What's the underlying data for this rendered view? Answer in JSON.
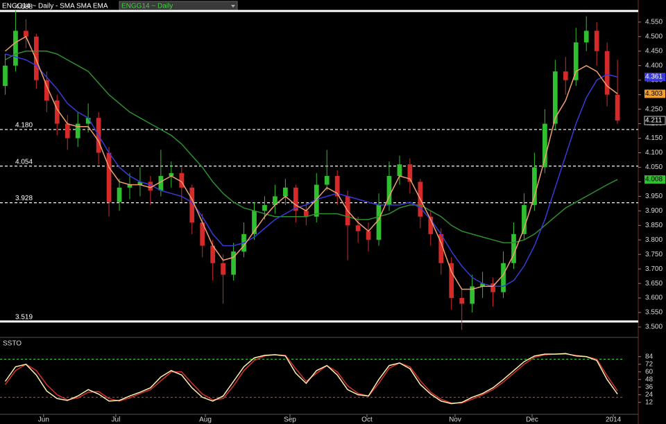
{
  "chart_data": {
    "type": "candlestick",
    "title": "ENGG14 ~ Daily - SMA SMA EMA",
    "symbol_selector": "ENGG14 ~ Daily",
    "xlim": [
      -0.5,
      61
    ],
    "xticks": [
      {
        "value": 3.7,
        "label": "Jun"
      },
      {
        "value": 10.66,
        "label": "Jul"
      },
      {
        "value": 19.29,
        "label": "Aug"
      },
      {
        "value": 27.44,
        "label": "Sep"
      },
      {
        "value": 34.86,
        "label": "Oct"
      },
      {
        "value": 43.35,
        "label": "Nov"
      },
      {
        "value": 50.77,
        "label": "Dec"
      },
      {
        "value": 58.6,
        "label": "2014"
      }
    ],
    "ylim": [
      3.469,
      4.626
    ],
    "yticks": [
      {
        "value": 3.5,
        "label": "3.500"
      },
      {
        "value": 3.55,
        "label": "3.550"
      },
      {
        "value": 3.6,
        "label": "3.600"
      },
      {
        "value": 3.65,
        "label": "3.650"
      },
      {
        "value": 3.7,
        "label": "3.700"
      },
      {
        "value": 3.75,
        "label": "3.750"
      },
      {
        "value": 3.8,
        "label": "3.800"
      },
      {
        "value": 3.85,
        "label": "3.850"
      },
      {
        "value": 3.9,
        "label": "3.900"
      },
      {
        "value": 3.95,
        "label": "3.950"
      },
      {
        "value": 4.0,
        "label": "4.000"
      },
      {
        "value": 4.05,
        "label": "4.050"
      },
      {
        "value": 4.1,
        "label": "4.100"
      },
      {
        "value": 4.15,
        "label": "4.150"
      },
      {
        "value": 4.2,
        "label": "4.200"
      },
      {
        "value": 4.25,
        "label": "4.250"
      },
      {
        "value": 4.3,
        "label": "4.300"
      },
      {
        "value": 4.35,
        "label": "4.350"
      },
      {
        "value": 4.4,
        "label": "4.400"
      },
      {
        "value": 4.45,
        "label": "4.450"
      },
      {
        "value": 4.5,
        "label": "4.500"
      },
      {
        "value": 4.55,
        "label": "4.550"
      }
    ],
    "up_color": "#2fbf2f",
    "down_color": "#d42a2a",
    "candles": [
      [
        4.33,
        4.44,
        4.3,
        4.4
      ],
      [
        4.4,
        4.59,
        4.38,
        4.52
      ],
      [
        4.52,
        4.56,
        4.46,
        4.5
      ],
      [
        4.5,
        4.51,
        4.32,
        4.35
      ],
      [
        4.35,
        4.38,
        4.24,
        4.28
      ],
      [
        4.28,
        4.3,
        4.16,
        4.2
      ],
      [
        4.2,
        4.23,
        4.11,
        4.15
      ],
      [
        4.15,
        4.24,
        4.12,
        4.2
      ],
      [
        4.2,
        4.27,
        4.17,
        4.22
      ],
      [
        4.22,
        4.24,
        4.06,
        4.1
      ],
      [
        4.1,
        4.12,
        3.88,
        3.93
      ],
      [
        3.93,
        4.01,
        3.9,
        3.98
      ],
      [
        3.98,
        4.03,
        3.94,
        3.99
      ],
      [
        3.99,
        4.05,
        3.95,
        4.0
      ],
      [
        4.0,
        4.02,
        3.92,
        3.97
      ],
      [
        3.97,
        4.11,
        3.95,
        4.02
      ],
      [
        4.02,
        4.07,
        3.98,
        4.03
      ],
      [
        4.03,
        4.05,
        3.93,
        3.98
      ],
      [
        3.98,
        3.99,
        3.82,
        3.86
      ],
      [
        3.86,
        3.89,
        3.74,
        3.78
      ],
      [
        3.78,
        3.8,
        3.66,
        3.72
      ],
      [
        3.72,
        3.75,
        3.58,
        3.68
      ],
      [
        3.68,
        3.79,
        3.66,
        3.76
      ],
      [
        3.76,
        3.86,
        3.74,
        3.82
      ],
      [
        3.82,
        3.93,
        3.8,
        3.9
      ],
      [
        3.9,
        3.95,
        3.87,
        3.92
      ],
      [
        3.92,
        3.99,
        3.89,
        3.95
      ],
      [
        3.95,
        4.01,
        3.92,
        3.98
      ],
      [
        3.98,
        3.99,
        3.86,
        3.9
      ],
      [
        3.9,
        3.93,
        3.85,
        3.88
      ],
      [
        3.88,
        4.03,
        3.86,
        3.99
      ],
      [
        3.99,
        4.11,
        3.97,
        4.02
      ],
      [
        4.02,
        4.04,
        3.92,
        3.95
      ],
      [
        3.95,
        3.97,
        3.73,
        3.85
      ],
      [
        3.85,
        3.88,
        3.79,
        3.83
      ],
      [
        3.83,
        3.86,
        3.76,
        3.8
      ],
      [
        3.8,
        3.96,
        3.78,
        3.92
      ],
      [
        3.92,
        4.07,
        3.9,
        4.02
      ],
      [
        4.02,
        4.09,
        3.99,
        4.06
      ],
      [
        4.06,
        4.08,
        3.96,
        4.0
      ],
      [
        4.0,
        4.01,
        3.84,
        3.88
      ],
      [
        3.88,
        3.9,
        3.78,
        3.82
      ],
      [
        3.82,
        3.84,
        3.68,
        3.72
      ],
      [
        3.72,
        3.74,
        3.56,
        3.6
      ],
      [
        3.6,
        3.63,
        3.49,
        3.58
      ],
      [
        3.58,
        3.68,
        3.55,
        3.64
      ],
      [
        3.64,
        3.69,
        3.6,
        3.65
      ],
      [
        3.65,
        3.67,
        3.57,
        3.62
      ],
      [
        3.62,
        3.76,
        3.6,
        3.72
      ],
      [
        3.72,
        3.86,
        3.7,
        3.82
      ],
      [
        3.82,
        3.96,
        3.8,
        3.92
      ],
      [
        3.92,
        4.1,
        3.9,
        4.05
      ],
      [
        4.05,
        4.25,
        4.03,
        4.2
      ],
      [
        4.2,
        4.42,
        4.18,
        4.38
      ],
      [
        4.38,
        4.43,
        4.3,
        4.35
      ],
      [
        4.35,
        4.53,
        4.33,
        4.48
      ],
      [
        4.48,
        4.57,
        4.45,
        4.52
      ],
      [
        4.52,
        4.55,
        4.4,
        4.45
      ],
      [
        4.45,
        4.48,
        4.26,
        4.3
      ],
      [
        4.3,
        4.42,
        4.2,
        4.211
      ]
    ],
    "series": [
      {
        "color": "#2f8f2f",
        "values": [
          4.42,
          4.44,
          4.45,
          4.45,
          4.45,
          4.44,
          4.42,
          4.4,
          4.38,
          4.34,
          4.3,
          4.27,
          4.24,
          4.22,
          4.2,
          4.18,
          4.16,
          4.13,
          4.09,
          4.05,
          4.0,
          3.96,
          3.93,
          3.91,
          3.9,
          3.89,
          3.88,
          3.88,
          3.88,
          3.88,
          3.89,
          3.89,
          3.89,
          3.88,
          3.87,
          3.87,
          3.88,
          3.89,
          3.91,
          3.92,
          3.92,
          3.9,
          3.88,
          3.85,
          3.83,
          3.82,
          3.81,
          3.8,
          3.79,
          3.79,
          3.8,
          3.82,
          3.85,
          3.88,
          3.91,
          3.93,
          3.95,
          3.97,
          3.99,
          4.008
        ]
      },
      {
        "color": "#3a3ad8",
        "values": [
          4.44,
          4.43,
          4.42,
          4.4,
          4.36,
          4.32,
          4.27,
          4.24,
          4.22,
          4.16,
          4.1,
          4.05,
          4.02,
          4.0,
          3.99,
          3.97,
          3.96,
          3.95,
          3.93,
          3.88,
          3.82,
          3.78,
          3.78,
          3.79,
          3.81,
          3.84,
          3.87,
          3.89,
          3.91,
          3.92,
          3.94,
          3.95,
          3.96,
          3.95,
          3.94,
          3.93,
          3.92,
          3.92,
          3.92,
          3.93,
          3.91,
          3.87,
          3.82,
          3.76,
          3.71,
          3.67,
          3.65,
          3.64,
          3.64,
          3.66,
          3.71,
          3.78,
          3.87,
          3.98,
          4.09,
          4.2,
          4.29,
          4.35,
          4.37,
          4.361
        ]
      },
      {
        "color": "#f0a070",
        "values": [
          4.45,
          4.48,
          4.5,
          4.42,
          4.33,
          4.25,
          4.2,
          4.19,
          4.19,
          4.14,
          4.05,
          4.0,
          3.99,
          3.99,
          3.98,
          4.0,
          4.02,
          4.0,
          3.94,
          3.86,
          3.78,
          3.73,
          3.74,
          3.78,
          3.83,
          3.88,
          3.92,
          3.95,
          3.92,
          3.9,
          3.94,
          3.98,
          3.96,
          3.9,
          3.86,
          3.83,
          3.87,
          3.95,
          4.02,
          4.01,
          3.94,
          3.87,
          3.79,
          3.69,
          3.63,
          3.63,
          3.64,
          3.64,
          3.68,
          3.75,
          3.84,
          3.95,
          4.08,
          4.22,
          4.28,
          4.38,
          4.4,
          4.38,
          4.33,
          4.303
        ]
      }
    ],
    "tag_colors": [
      "#2fbf2f",
      "#3a3ad8",
      "#f0a030"
    ],
    "levels": [
      {
        "value": 4.588,
        "style": "solid"
      },
      {
        "value": 4.18,
        "label": "4.180",
        "style": "dashed"
      },
      {
        "value": 4.054,
        "style": "dashed"
      },
      {
        "value": 3.928,
        "style": "dashed"
      },
      {
        "value": 3.519,
        "style": "solid"
      }
    ],
    "stochastic": {
      "title": "SSTO",
      "ylim": [
        -9,
        111
      ],
      "yticks": [
        12,
        24,
        36,
        48,
        60,
        72,
        84
      ],
      "levels": [
        {
          "value": 80,
          "color": "#3fbf3f"
        },
        {
          "value": 20,
          "color": "#d43030"
        }
      ],
      "series": [
        {
          "color": "#d43030",
          "values": [
            40,
            62,
            72,
            62,
            40,
            24,
            16,
            19,
            28,
            29,
            18,
            14,
            19,
            26,
            32,
            46,
            60,
            60,
            42,
            25,
            16,
            18,
            38,
            62,
            78,
            85,
            87,
            86,
            65,
            45,
            58,
            70,
            60,
            38,
            26,
            22,
            42,
            66,
            74,
            68,
            46,
            28,
            17,
            11,
            11,
            17,
            24,
            32,
            44,
            58,
            72,
            83,
            87,
            88,
            88,
            86,
            84,
            80,
            54,
            30
          ]
        },
        {
          "color": "#fff2b0",
          "values": [
            45,
            68,
            72,
            55,
            30,
            18,
            15,
            22,
            32,
            25,
            14,
            15,
            22,
            28,
            35,
            52,
            62,
            55,
            35,
            20,
            14,
            22,
            45,
            68,
            82,
            86,
            87,
            85,
            58,
            42,
            62,
            70,
            55,
            32,
            24,
            22,
            48,
            70,
            74,
            65,
            40,
            25,
            14,
            10,
            12,
            20,
            26,
            35,
            48,
            62,
            76,
            85,
            88,
            88,
            89,
            85,
            84,
            78,
            48,
            25
          ]
        }
      ]
    }
  }
}
